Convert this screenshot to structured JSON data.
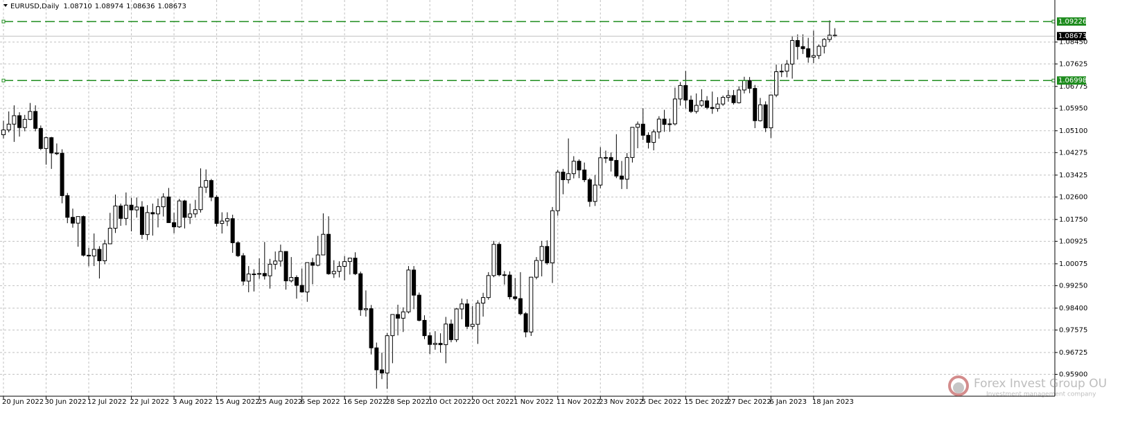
{
  "chart_data": {
    "type": "candlestick",
    "title": "EURUSD,Daily",
    "header_values": [
      1.0871,
      1.08974,
      1.08636,
      1.08673
    ],
    "header_value_labels": [
      "1.08710",
      "1.08974",
      "1.08636",
      "1.08673"
    ],
    "categories": [
      "20 Jun 2022",
      null,
      null,
      null,
      null,
      null,
      null,
      null,
      "30 Jun 2022",
      null,
      null,
      null,
      null,
      null,
      null,
      null,
      "12 Jul 2022",
      null,
      null,
      null,
      null,
      null,
      null,
      null,
      "22 Jul 2022",
      null,
      null,
      null,
      null,
      null,
      null,
      null,
      "3 Aug 2022",
      null,
      null,
      null,
      null,
      null,
      null,
      null,
      "15 Aug 2022",
      null,
      null,
      null,
      null,
      null,
      null,
      null,
      "25 Aug 2022",
      null,
      null,
      null,
      null,
      null,
      null,
      null,
      "6 Sep 2022",
      null,
      null,
      null,
      null,
      null,
      null,
      null,
      "16 Sep 2022",
      null,
      null,
      null,
      null,
      null,
      null,
      null,
      "28 Sep 2022",
      null,
      null,
      null,
      null,
      null,
      null,
      null,
      "10 Oct 2022",
      null,
      null,
      null,
      null,
      null,
      null,
      null,
      "20 Oct 2022",
      null,
      null,
      null,
      null,
      null,
      null,
      null,
      "1 Nov 2022",
      null,
      null,
      null,
      null,
      null,
      null,
      null,
      "11 Nov 2022",
      null,
      null,
      null,
      null,
      null,
      null,
      null,
      "23 Nov 2022",
      null,
      null,
      null,
      null,
      null,
      null,
      null,
      "5 Dec 2022",
      null,
      null,
      null,
      null,
      null,
      null,
      null,
      "15 Dec 2022",
      null,
      null,
      null,
      null,
      null,
      null,
      null,
      "27 Dec 2022",
      null,
      null,
      null,
      null,
      null,
      null,
      null,
      "6 Jan 2023",
      null,
      null,
      null,
      null,
      null,
      null,
      null,
      "18 Jan 2023",
      null,
      null,
      null,
      null
    ],
    "open": [
      1.0495,
      1.0513,
      1.0535,
      1.0567,
      1.0522,
      1.0553,
      1.0583,
      1.0519,
      1.0443,
      1.0484,
      1.0426,
      1.0425,
      1.0265,
      1.0183,
      1.0161,
      1.0186,
      1.004,
      1.0037,
      1.0062,
      1.0019,
      1.0083,
      1.0142,
      1.0226,
      1.0179,
      1.0229,
      1.0211,
      1.0222,
      1.0118,
      1.0201,
      1.0196,
      1.0223,
      1.026,
      1.0163,
      1.0147,
      1.0245,
      1.0183,
      1.0196,
      1.0212,
      1.0297,
      1.0322,
      1.0259,
      1.016,
      1.0169,
      1.0178,
      1.0087,
      1.0038,
      0.9942,
      0.9969,
      0.9968,
      0.9971,
      0.9962,
      1.0006,
      1.0018,
      1.0054,
      0.9943,
      0.9956,
      0.9926,
      0.9901,
      1.0012,
      1.0002,
      1.0041,
      1.0119,
      0.997,
      0.9979,
      0.9998,
      1.0016,
      1.0029,
      0.997,
      0.9834,
      0.9838,
      0.969,
      0.9607,
      0.9595,
      0.9736,
      0.9816,
      0.9802,
      0.9826,
      0.9984,
      0.9889,
      0.9794,
      0.9736,
      0.9703,
      0.9707,
      0.9702,
      0.978,
      0.9721,
      0.9837,
      0.9856,
      0.9771,
      0.9779,
      0.9859,
      0.988,
      0.9963,
      1.0081,
      0.9966,
      0.9965,
      0.9883,
      0.9876,
      0.9819,
      0.975,
      0.9957,
      1.002,
      1.0073,
      1.0011,
      1.0208,
      1.0354,
      1.0325,
      1.0348,
      1.0395,
      1.0362,
      1.0325,
      1.0243,
      1.0305,
      1.0408,
      1.0409,
      1.0398,
      1.0339,
      1.0327,
      1.0409,
      1.0523,
      1.0535,
      1.0493,
      1.0466,
      1.0506,
      1.0554,
      1.0534,
      1.0536,
      1.063,
      1.0681,
      1.0626,
      1.0583,
      1.0606,
      1.0623,
      1.0598,
      1.0594,
      1.0611,
      1.0636,
      1.0643,
      1.0616,
      1.0664,
      1.07,
      1.067,
      1.0548,
      1.0608,
      1.0521,
      1.0645,
      1.0733,
      1.0735,
      1.0762,
      1.0851,
      1.0828,
      1.082,
      1.0788,
      1.0794,
      1.0829,
      1.0855,
      1.0871
    ],
    "high": [
      1.0548,
      1.0583,
      1.0606,
      1.058,
      1.057,
      1.0615,
      1.0606,
      1.053,
      1.0488,
      1.0487,
      1.0462,
      1.044,
      1.0275,
      1.0216,
      1.0186,
      1.019,
      1.0068,
      1.0122,
      1.0074,
      1.0098,
      1.02,
      1.0269,
      1.0235,
      1.0277,
      1.0257,
      1.0258,
      1.0244,
      1.0229,
      1.0235,
      1.0254,
      1.0274,
      1.0294,
      1.02,
      1.0253,
      1.0249,
      1.0235,
      1.0249,
      1.0368,
      1.0364,
      1.0328,
      1.0267,
      1.0202,
      1.0202,
      1.0193,
      1.0092,
      1.0048,
      0.9999,
      0.9987,
      1.0028,
      1.009,
      1.0026,
      1.0054,
      1.008,
      1.0055,
      1.0033,
      0.9964,
      0.999,
      1.0012,
      1.003,
      1.0113,
      1.0198,
      1.0187,
      1.0021,
      1.0017,
      1.0037,
      1.003,
      1.0051,
      0.9978,
      0.9907,
      0.9852,
      0.971,
      0.9672,
      0.9746,
      0.9815,
      0.9853,
      0.9843,
      0.9999,
      0.9999,
      0.9899,
      0.9813,
      0.9749,
      0.9753,
      0.9745,
      0.9807,
      0.9797,
      0.9841,
      0.9876,
      0.9874,
      0.9848,
      0.987,
      0.9898,
      0.9976,
      1.0094,
      1.0089,
      0.998,
      0.9979,
      0.9954,
      0.9976,
      0.9825,
      0.9958,
      1.0033,
      1.0094,
      1.0096,
      1.0222,
      1.0363,
      1.0366,
      1.0481,
      1.0414,
      1.0402,
      1.039,
      1.0332,
      1.0343,
      1.0448,
      1.0435,
      1.0428,
      1.0497,
      1.0396,
      1.0426,
      1.0524,
      1.0545,
      1.0595,
      1.0504,
      1.0515,
      1.0565,
      1.0589,
      1.0556,
      1.0673,
      1.0694,
      1.0736,
      1.0643,
      1.0651,
      1.0667,
      1.0641,
      1.0658,
      1.0637,
      1.0643,
      1.0664,
      1.0664,
      1.0678,
      1.0714,
      1.0713,
      1.0683,
      1.0634,
      1.0621,
      1.0647,
      1.076,
      1.0762,
      1.0777,
      1.0868,
      1.0874,
      1.0874,
      1.0861,
      1.0888,
      1.0836,
      1.086,
      1.0927,
      1.08974
    ],
    "low": [
      1.0481,
      1.0504,
      1.0468,
      1.0488,
      1.0508,
      1.055,
      1.0508,
      1.0437,
      1.0382,
      1.0366,
      1.0418,
      1.0236,
      1.0161,
      1.0144,
      1.0072,
      1.0035,
      0.9998,
      0.9999,
      0.9952,
      1.0006,
      1.0083,
      1.0124,
      1.0151,
      1.0153,
      1.013,
      1.0182,
      1.0101,
      1.0097,
      1.0114,
      1.0145,
      1.0186,
      1.0162,
      1.0123,
      1.0143,
      1.0141,
      1.0158,
      1.0182,
      1.0201,
      1.0275,
      1.0244,
      1.0148,
      1.0122,
      1.015,
      1.0049,
      1.0033,
      0.9926,
      0.99,
      0.9903,
      0.9951,
      0.9948,
      0.9914,
      0.9986,
      0.9997,
      0.991,
      0.9937,
      0.9876,
      0.9899,
      0.9864,
      0.993,
      0.9998,
      1.0041,
      0.9966,
      0.9954,
      0.9956,
      0.9945,
      0.9967,
      0.9965,
      0.9811,
      0.9808,
      0.9665,
      0.9536,
      0.9572,
      0.9535,
      0.9632,
      0.9737,
      0.975,
      0.982,
      0.9836,
      0.979,
      0.9723,
      0.9667,
      0.9683,
      0.9672,
      0.9632,
      0.9711,
      0.9712,
      0.9798,
      0.9761,
      0.976,
      0.9705,
      0.9808,
      0.9872,
      0.9957,
      0.996,
      0.9929,
      0.9873,
      0.9869,
      0.9813,
      0.973,
      0.9735,
      0.9949,
      0.996,
      1.0004,
      0.9935,
      1.0189,
      1.027,
      1.0311,
      1.033,
      1.0331,
      1.0316,
      1.0223,
      1.0226,
      1.0293,
      1.0388,
      1.0356,
      1.0331,
      1.029,
      1.029,
      1.039,
      1.0444,
      1.0475,
      1.0443,
      1.0436,
      1.048,
      1.0506,
      1.0506,
      1.053,
      1.0605,
      1.0594,
      1.0577,
      1.0575,
      1.06,
      1.0591,
      1.0574,
      1.0582,
      1.0604,
      1.062,
      1.0609,
      1.0613,
      1.0651,
      1.0652,
      1.052,
      1.0545,
      1.0505,
      1.0483,
      1.0637,
      1.0713,
      1.0712,
      1.0707,
      1.0779,
      1.08,
      1.0767,
      1.0766,
      1.0781,
      1.0802,
      1.0845,
      1.08636
    ],
    "close": [
      1.0513,
      1.0535,
      1.0567,
      1.0522,
      1.0553,
      1.0583,
      1.0519,
      1.0443,
      1.0484,
      1.0426,
      1.0425,
      1.0265,
      1.0183,
      1.0161,
      1.0186,
      1.004,
      1.0037,
      1.0062,
      1.0019,
      1.0083,
      1.0142,
      1.0226,
      1.0179,
      1.0229,
      1.0211,
      1.0222,
      1.0118,
      1.0201,
      1.0196,
      1.0223,
      1.026,
      1.0163,
      1.0147,
      1.0245,
      1.0183,
      1.0196,
      1.0212,
      1.0297,
      1.0322,
      1.0259,
      1.016,
      1.0169,
      1.0178,
      1.0087,
      1.0038,
      0.9942,
      0.9969,
      0.9968,
      0.9971,
      0.9962,
      1.0006,
      1.0018,
      1.0054,
      0.9943,
      0.9956,
      0.9926,
      0.9901,
      1.0012,
      1.0002,
      1.0041,
      1.0119,
      0.997,
      0.9979,
      0.9998,
      1.0016,
      1.0029,
      0.997,
      0.9834,
      0.9838,
      0.969,
      0.9607,
      0.9595,
      0.9736,
      0.9816,
      0.9802,
      0.9826,
      0.9984,
      0.9889,
      0.9794,
      0.9736,
      0.9703,
      0.9707,
      0.9702,
      0.978,
      0.9721,
      0.9837,
      0.9856,
      0.9771,
      0.9779,
      0.9859,
      0.988,
      0.9963,
      1.0081,
      0.9966,
      0.9965,
      0.9883,
      0.9876,
      0.9819,
      0.975,
      0.9957,
      1.002,
      1.0073,
      1.0011,
      1.0208,
      1.0354,
      1.0325,
      1.0348,
      1.0395,
      1.0362,
      1.0325,
      1.0243,
      1.0305,
      1.0408,
      1.0409,
      1.0398,
      1.0339,
      1.0327,
      1.0409,
      1.0523,
      1.0535,
      1.0493,
      1.0466,
      1.0506,
      1.0554,
      1.0534,
      1.0536,
      1.063,
      1.0681,
      1.0626,
      1.0583,
      1.0606,
      1.0623,
      1.0598,
      1.0594,
      1.0611,
      1.0636,
      1.0643,
      1.0616,
      1.0664,
      1.07,
      1.067,
      1.0548,
      1.0608,
      1.0521,
      1.0645,
      1.0733,
      1.0735,
      1.0762,
      1.0851,
      1.0828,
      1.082,
      1.0788,
      1.0794,
      1.0829,
      1.0855,
      1.0871,
      1.08673
    ],
    "ylim": [
      0.951,
      1.10039
    ],
    "yticks": [
      {
        "value": 1.0845,
        "label": "1.08450"
      },
      1.07625,
      1.06775,
      {
        "value": 1.0595,
        "label": "1.05950"
      },
      {
        "value": 1.051,
        "label": "1.05100"
      },
      1.04275,
      1.03425,
      {
        "value": 1.026,
        "label": "1.02600"
      },
      {
        "value": 1.0175,
        "label": "1.01750"
      },
      1.00925,
      1.00075,
      {
        "value": 0.9925,
        "label": "0.99250"
      },
      {
        "value": 0.984,
        "label": "0.98400"
      },
      0.97575,
      0.96725,
      {
        "value": 0.959,
        "label": "0.95900"
      }
    ],
    "grid": true,
    "bull_color": "#ffffff",
    "bear_color": "#000000",
    "hlines": [
      {
        "value": 1.09226,
        "color": "#1e8c1e"
      },
      {
        "value": 1.06998,
        "color": "#1e8c1e"
      }
    ],
    "bid": 1.08673
  },
  "watermark": {
    "name": "Forex Invest Group OU",
    "tagline": "Investment management company"
  }
}
